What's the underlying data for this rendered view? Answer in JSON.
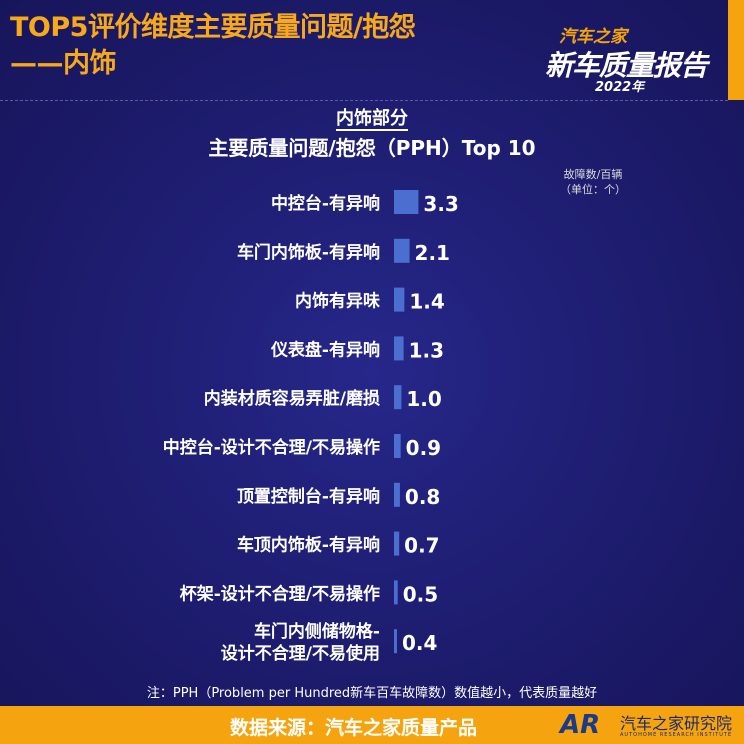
{
  "header": {
    "title_line1": "TOP5评价维度主要质量问题/抱怨",
    "title_line2": "——内饰"
  },
  "logo": {
    "brand": "汽车之家",
    "name": "新车质量报告",
    "year": "2022年"
  },
  "chart_data": {
    "type": "bar",
    "orientation": "horizontal",
    "title": "内饰部分",
    "subtitle": "主要质量问题/抱怨（PPH）Top 10",
    "unit_label": "故障数/百辆",
    "unit_sub": "（单位：个）",
    "categories": [
      "中控台-有异响",
      "车门内饰板-有异响",
      "内饰有异味",
      "仪表盘-有异响",
      "内装材质容易弄脏/磨损",
      "中控台-设计不合理/不易操作",
      "顶置控制台-有异响",
      "车顶内饰板-有异响",
      "杯架-设计不合理/不易操作",
      "车门内侧储物格-\n设计不合理/不易使用"
    ],
    "values": [
      3.3,
      2.1,
      1.4,
      1.3,
      1.0,
      0.9,
      0.8,
      0.7,
      0.5,
      0.4
    ],
    "value_labels": [
      "3.3",
      "2.1",
      "1.4",
      "1.3",
      "1.0",
      "0.9",
      "0.8",
      "0.7",
      "0.5",
      "0.4"
    ],
    "bar_color": "#4a6fd0"
  },
  "note": "注：PPH（Problem per Hundred新车百车故障数）数值越小，代表质量越好",
  "footer": {
    "source": "数据来源：汽车之家质量产品",
    "logo_mark": "AR",
    "institute": "汽车之家研究院",
    "institute_en": "AUTOHOME RESEARCH INSTITUTE"
  },
  "colors": {
    "background": "#1d1c6e",
    "accent": "#f5a40f"
  }
}
